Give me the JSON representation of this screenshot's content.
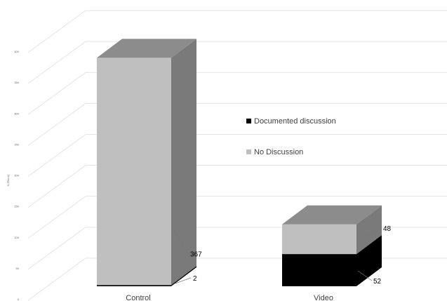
{
  "chart_data": {
    "type": "bar",
    "stacked": true,
    "projection": "3d",
    "categories": [
      "Control",
      "Video"
    ],
    "series": [
      {
        "name": "Documented discussion",
        "values": [
          2,
          52
        ],
        "color": "#000000"
      },
      {
        "name": "No Discussion",
        "values": [
          367,
          48
        ],
        "color": "#bfbfbf"
      }
    ],
    "ylabel": "N (Pts=n)",
    "yticks": [
      0,
      50,
      100,
      150,
      200,
      250,
      300,
      350,
      400
    ],
    "ylim": [
      0,
      400
    ],
    "grid": true,
    "legend": "center-right"
  }
}
